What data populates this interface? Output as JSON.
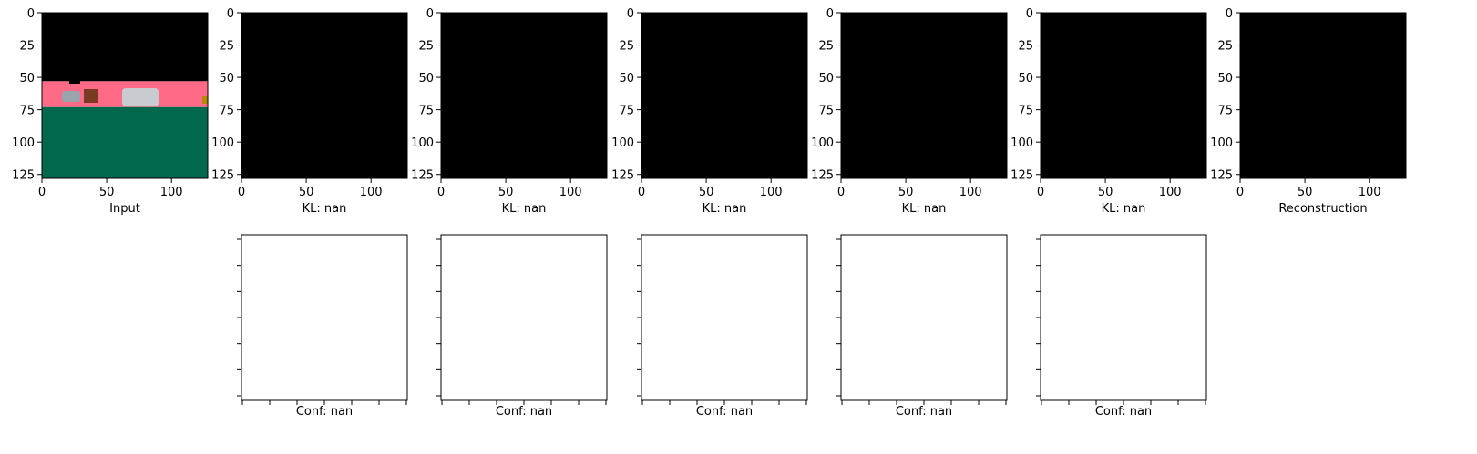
{
  "figure": {
    "top_row_axis_ticks": [
      "0",
      "50",
      "100"
    ],
    "top_row_y_ticks": [
      "0",
      "25",
      "50",
      "75",
      "100",
      "125"
    ]
  },
  "colors": {
    "sky": "#000000",
    "road": "#ff6b86",
    "ground": "#00684d",
    "panel_blank": "#000000",
    "conf_panel": "#ffffff"
  },
  "chart_data": [
    {
      "type": "image",
      "panel": "input",
      "xlabel": "Input",
      "xlim": [
        0,
        128
      ],
      "ylim": [
        128,
        0
      ],
      "xticks": [
        0,
        50,
        100
      ],
      "yticks": [
        0,
        25,
        50,
        75,
        100,
        125
      ],
      "regions": [
        {
          "name": "sky",
          "color": "#000000",
          "y_from": 0,
          "y_to": 53
        },
        {
          "name": "road",
          "color": "#ff6b86",
          "y_from": 53,
          "y_to": 73
        },
        {
          "name": "ground",
          "color": "#00684d",
          "y_from": 73,
          "y_to": 128
        }
      ]
    },
    {
      "type": "image",
      "panel": "slot-1",
      "xlabel": "KL: nan",
      "xlim": [
        0,
        128
      ],
      "ylim": [
        128,
        0
      ],
      "xticks": [
        0,
        50,
        100
      ],
      "yticks": [
        0,
        25,
        50,
        75,
        100,
        125
      ]
    },
    {
      "type": "image",
      "panel": "slot-2",
      "xlabel": "KL: nan",
      "xlim": [
        0,
        128
      ],
      "ylim": [
        128,
        0
      ],
      "xticks": [
        0,
        50,
        100
      ],
      "yticks": [
        0,
        25,
        50,
        75,
        100,
        125
      ]
    },
    {
      "type": "image",
      "panel": "slot-3",
      "xlabel": "KL: nan",
      "xlim": [
        0,
        128
      ],
      "ylim": [
        128,
        0
      ],
      "xticks": [
        0,
        50,
        100
      ],
      "yticks": [
        0,
        25,
        50,
        75,
        100,
        125
      ]
    },
    {
      "type": "image",
      "panel": "slot-4",
      "xlabel": "KL: nan",
      "xlim": [
        0,
        128
      ],
      "ylim": [
        128,
        0
      ],
      "xticks": [
        0,
        50,
        100
      ],
      "yticks": [
        0,
        25,
        50,
        75,
        100,
        125
      ]
    },
    {
      "type": "image",
      "panel": "slot-5",
      "xlabel": "KL: nan",
      "xlim": [
        0,
        128
      ],
      "ylim": [
        128,
        0
      ],
      "xticks": [
        0,
        50,
        100
      ],
      "yticks": [
        0,
        25,
        50,
        75,
        100,
        125
      ]
    },
    {
      "type": "image",
      "panel": "reconstruction",
      "xlabel": "Reconstruction",
      "xlim": [
        0,
        128
      ],
      "ylim": [
        128,
        0
      ],
      "xticks": [
        0,
        50,
        100
      ],
      "yticks": [
        0,
        25,
        50,
        75,
        100,
        125
      ]
    },
    {
      "type": "image",
      "panel": "conf-1",
      "xlabel": "Conf: nan",
      "tick_count_x": 7,
      "tick_count_y": 7
    },
    {
      "type": "image",
      "panel": "conf-2",
      "xlabel": "Conf: nan",
      "tick_count_x": 7,
      "tick_count_y": 7
    },
    {
      "type": "image",
      "panel": "conf-3",
      "xlabel": "Conf: nan",
      "tick_count_x": 7,
      "tick_count_y": 7
    },
    {
      "type": "image",
      "panel": "conf-4",
      "xlabel": "Conf: nan",
      "tick_count_x": 7,
      "tick_count_y": 7
    },
    {
      "type": "image",
      "panel": "conf-5",
      "xlabel": "Conf: nan",
      "tick_count_x": 7,
      "tick_count_y": 7
    }
  ]
}
